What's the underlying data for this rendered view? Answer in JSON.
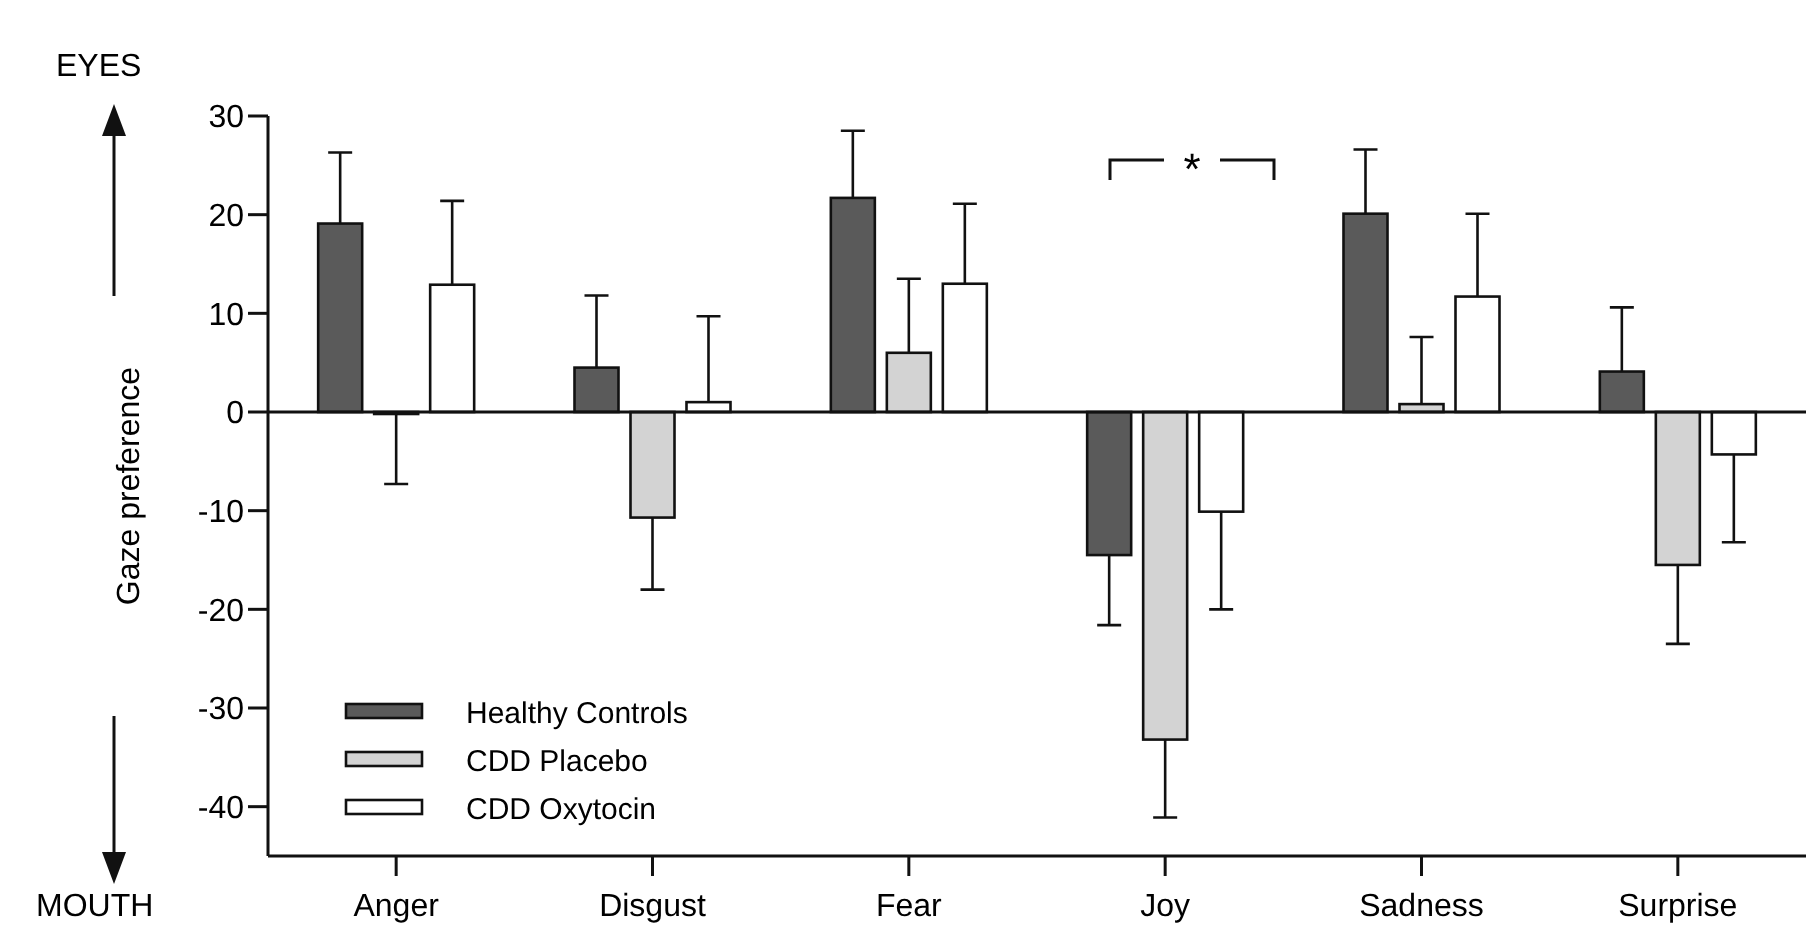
{
  "chart_data": {
    "type": "bar",
    "ylabel": "Gaze preference",
    "categories": [
      "Anger",
      "Disgust",
      "Fear",
      "Joy",
      "Sadness",
      "Surprise"
    ],
    "series": [
      {
        "name": "Healthy Controls",
        "color": "#5a5a5a",
        "values": [
          19.1,
          4.5,
          21.7,
          -14.5,
          20.1,
          4.1
        ],
        "errors": [
          [
            19.1,
            26.3
          ],
          [
            4.5,
            11.8
          ],
          [
            21.7,
            28.5
          ],
          [
            -21.6,
            -14.5
          ],
          [
            20.1,
            26.6
          ],
          [
            4.1,
            10.6
          ]
        ]
      },
      {
        "name": "CDD Placebo",
        "color": "#d3d3d3",
        "values": [
          0,
          -10.7,
          6.0,
          -33.2,
          0.8,
          -15.5
        ],
        "errors": [
          [
            -7.3,
            0
          ],
          [
            -18.0,
            -10.7
          ],
          [
            6.0,
            13.5
          ],
          [
            -41.1,
            -33.2
          ],
          [
            0.8,
            7.6
          ],
          [
            -23.5,
            -15.5
          ]
        ]
      },
      {
        "name": "CDD Oxytocin",
        "color": "#ffffff",
        "values": [
          12.9,
          1.0,
          13.0,
          -10.1,
          11.7,
          -4.3
        ],
        "errors": [
          [
            12.9,
            21.4
          ],
          [
            1.0,
            9.7
          ],
          [
            13.0,
            21.1
          ],
          [
            -20.0,
            -10.1
          ],
          [
            11.7,
            20.1
          ],
          [
            -13.2,
            -4.3
          ]
        ]
      }
    ],
    "ylim": [
      -45,
      30
    ],
    "yticks": [
      -40,
      -30,
      -20,
      -10,
      0,
      10,
      20,
      30
    ],
    "legend": "bottom left",
    "ref_lines": [
      {
        "axis": "y",
        "value": 0
      }
    ],
    "annotations": [
      "EYES",
      "MOUTH",
      "*"
    ]
  }
}
